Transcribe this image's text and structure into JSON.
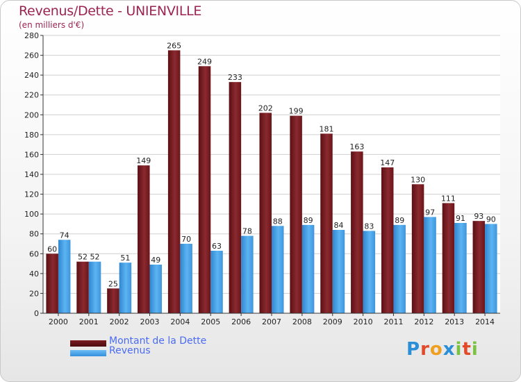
{
  "header": {
    "title": "Revenus/Dette - UNIENVILLE",
    "subtitle": "(en milliers d'€)"
  },
  "chart_data": {
    "type": "bar",
    "title": "Revenus/Dette - UNIENVILLE",
    "ylabel": "(en milliers d'€)",
    "xlabel": "",
    "ylim": [
      0,
      280
    ],
    "yticks": [
      0,
      20,
      40,
      60,
      80,
      100,
      120,
      140,
      160,
      180,
      200,
      220,
      240,
      260,
      280
    ],
    "grid": true,
    "categories": [
      "2000",
      "2001",
      "2002",
      "2003",
      "2004",
      "2005",
      "2006",
      "2007",
      "2008",
      "2009",
      "2010",
      "2011",
      "2012",
      "2013",
      "2014"
    ],
    "series": [
      {
        "name": "Montant de la Dette",
        "color": "#7a1a1f",
        "values": [
          60,
          52,
          25,
          149,
          265,
          249,
          233,
          202,
          199,
          181,
          163,
          147,
          130,
          111,
          93
        ]
      },
      {
        "name": "Revenus",
        "color": "#4aa3e8",
        "values": [
          74,
          52,
          51,
          49,
          70,
          63,
          78,
          88,
          89,
          84,
          83,
          89,
          97,
          91,
          90
        ]
      }
    ],
    "legend_position": "bottom-left"
  },
  "legend": {
    "items": [
      "Montant de la Dette",
      "Revenus"
    ]
  },
  "logo": {
    "letters": [
      "P",
      "r",
      "o",
      "x",
      "i",
      "t",
      "i"
    ],
    "colors": [
      "#2a8fd6",
      "#e24a2a",
      "#f0a020",
      "#2a8fd6",
      "#7cc242",
      "#e24a2a",
      "#7cc242"
    ]
  }
}
